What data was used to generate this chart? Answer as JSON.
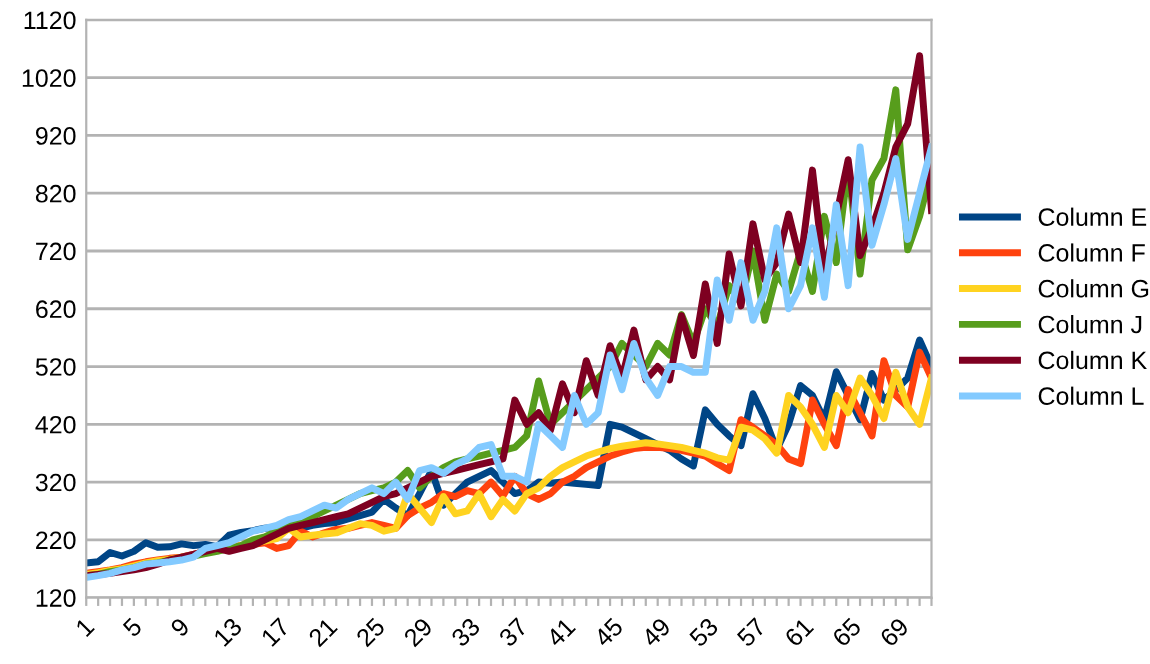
{
  "chart_data": {
    "type": "line",
    "categories": [
      "1",
      null,
      null,
      null,
      "5",
      null,
      null,
      null,
      "9",
      null,
      null,
      null,
      "13",
      null,
      null,
      null,
      "17",
      null,
      null,
      null,
      "21",
      null,
      null,
      null,
      "25",
      null,
      null,
      null,
      "29",
      null,
      null,
      null,
      "33",
      null,
      null,
      null,
      "37",
      null,
      null,
      null,
      "41",
      null,
      null,
      null,
      "45",
      null,
      null,
      null,
      "49",
      null,
      null,
      null,
      "53",
      null,
      null,
      null,
      "57",
      null,
      null,
      null,
      "61",
      null,
      null,
      null,
      "65",
      null,
      null,
      null,
      "69",
      null,
      null,
      null
    ],
    "series": [
      {
        "name": "Column E",
        "color": "#004586",
        "values": [
          180,
          182,
          198,
          192,
          200,
          215,
          207,
          208,
          213,
          210,
          212,
          208,
          228,
          233,
          236,
          240,
          242,
          242,
          240,
          245,
          248,
          250,
          256,
          262,
          268,
          290,
          275,
          262,
          300,
          340,
          280,
          300,
          320,
          330,
          340,
          320,
          300,
          305,
          320,
          318,
          320,
          318,
          316,
          314,
          420,
          415,
          405,
          395,
          385,
          375,
          360,
          348,
          445,
          420,
          400,
          383,
          473,
          430,
          376,
          420,
          487,
          470,
          428,
          511,
          470,
          428,
          508,
          462,
          480,
          500,
          566,
          520
        ]
      },
      {
        "name": "Column F",
        "color": "#ff420e",
        "values": [
          162,
          165,
          168,
          172,
          178,
          182,
          185,
          188,
          190,
          195,
          200,
          205,
          208,
          210,
          212,
          215,
          205,
          210,
          235,
          225,
          232,
          238,
          240,
          245,
          250,
          245,
          240,
          262,
          275,
          285,
          300,
          295,
          305,
          300,
          320,
          296,
          330,
          300,
          290,
          300,
          320,
          330,
          345,
          355,
          365,
          372,
          378,
          380,
          380,
          378,
          375,
          370,
          365,
          352,
          340,
          428,
          415,
          400,
          385,
          360,
          352,
          462,
          420,
          383,
          480,
          440,
          400,
          530,
          470,
          450,
          545,
          500
        ]
      },
      {
        "name": "Column G",
        "color": "#ffd320",
        "values": [
          160,
          163,
          167,
          170,
          175,
          180,
          184,
          186,
          190,
          194,
          198,
          203,
          206,
          210,
          214,
          218,
          222,
          240,
          225,
          228,
          230,
          232,
          240,
          248,
          245,
          235,
          240,
          300,
          275,
          250,
          295,
          265,
          270,
          300,
          260,
          290,
          270,
          300,
          310,
          330,
          345,
          355,
          365,
          372,
          378,
          382,
          385,
          388,
          386,
          383,
          380,
          375,
          370,
          362,
          358,
          415,
          410,
          395,
          370,
          470,
          450,
          420,
          380,
          470,
          440,
          500,
          470,
          430,
          510,
          450,
          420,
          500
        ]
      },
      {
        "name": "Column J",
        "color": "#579d1c",
        "values": [
          158,
          160,
          165,
          168,
          172,
          178,
          180,
          185,
          188,
          192,
          196,
          200,
          205,
          210,
          220,
          225,
          235,
          245,
          250,
          260,
          270,
          280,
          290,
          300,
          305,
          310,
          320,
          340,
          310,
          330,
          345,
          355,
          360,
          365,
          370,
          375,
          380,
          400,
          495,
          420,
          440,
          460,
          480,
          500,
          520,
          560,
          540,
          520,
          560,
          540,
          610,
          560,
          620,
          590,
          660,
          630,
          720,
          600,
          680,
          650,
          720,
          650,
          780,
          700,
          867,
          680,
          843,
          880,
          999,
          722,
          780,
          860
        ]
      },
      {
        "name": "Column K",
        "color": "#7e0021",
        "values": [
          158,
          160,
          162,
          165,
          168,
          172,
          178,
          185,
          190,
          195,
          200,
          205,
          200,
          205,
          210,
          220,
          230,
          240,
          245,
          250,
          255,
          260,
          265,
          275,
          285,
          295,
          300,
          310,
          320,
          330,
          335,
          340,
          345,
          350,
          355,
          360,
          462,
          420,
          440,
          410,
          490,
          440,
          530,
          470,
          556,
          500,
          583,
          497,
          520,
          497,
          608,
          539,
          663,
          560,
          715,
          625,
          767,
          670,
          700,
          784,
          700,
          860,
          680,
          780,
          878,
          712,
          760,
          820,
          900,
          940,
          1058,
          790
        ]
      },
      {
        "name": "Column L",
        "color": "#83caff",
        "values": [
          155,
          158,
          162,
          168,
          172,
          178,
          180,
          182,
          185,
          190,
          205,
          210,
          215,
          225,
          235,
          240,
          245,
          255,
          260,
          270,
          280,
          275,
          290,
          300,
          310,
          300,
          320,
          290,
          340,
          345,
          335,
          350,
          360,
          380,
          385,
          330,
          330,
          320,
          420,
          400,
          380,
          470,
          420,
          440,
          540,
          480,
          560,
          500,
          470,
          520,
          520,
          510,
          510,
          670,
          600,
          700,
          600,
          650,
          760,
          620,
          660,
          760,
          640,
          800,
          660,
          900,
          730,
          800,
          880,
          740,
          820,
          900
        ]
      }
    ],
    "ylim": [
      120,
      1120
    ],
    "yticks": [
      120,
      220,
      320,
      420,
      520,
      620,
      720,
      820,
      920,
      1020,
      1120
    ],
    "grid": "y",
    "legend": "right",
    "marker": "none",
    "line_style": "solid"
  }
}
